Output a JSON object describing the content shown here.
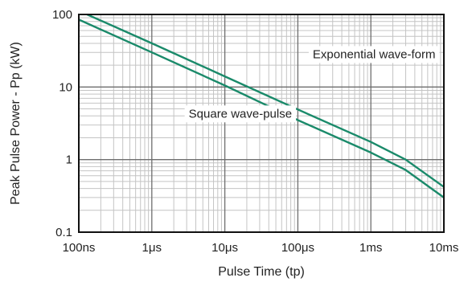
{
  "chart_data": {
    "type": "line",
    "xlabel": "Pulse Time (tp)",
    "ylabel": "Peak Pulse Power - Pp (kW)",
    "x_scale": "log",
    "y_scale": "log",
    "xlim_seconds": [
      1e-07,
      0.01
    ],
    "ylim_kW": [
      0.1,
      100
    ],
    "grid": true,
    "x_ticks": [
      {
        "value": 1e-07,
        "label": "100ns"
      },
      {
        "value": 1e-06,
        "label": "1μs"
      },
      {
        "value": 1e-05,
        "label": "10μs"
      },
      {
        "value": 0.0001,
        "label": "100μs"
      },
      {
        "value": 0.001,
        "label": "1ms"
      },
      {
        "value": 0.01,
        "label": "10ms"
      }
    ],
    "y_ticks": [
      {
        "value": 0.1,
        "label": "0.1"
      },
      {
        "value": 1,
        "label": "1"
      },
      {
        "value": 10,
        "label": "10"
      },
      {
        "value": 100,
        "label": "100"
      }
    ],
    "series": [
      {
        "name": "Exponential wave-form",
        "color": "#1a8a6a",
        "points": [
          [
            1.3e-07,
            100
          ],
          [
            1e-06,
            40
          ],
          [
            1e-05,
            14
          ],
          [
            0.0001,
            4.9
          ],
          [
            0.001,
            1.75
          ],
          [
            0.003,
            1.0
          ],
          [
            0.01,
            0.42
          ]
        ]
      },
      {
        "name": "Square wave-pulse",
        "color": "#1a8a6a",
        "points": [
          [
            1e-07,
            85
          ],
          [
            1e-06,
            30
          ],
          [
            1e-05,
            10.5
          ],
          [
            0.0001,
            3.5
          ],
          [
            0.001,
            1.25
          ],
          [
            0.003,
            0.72
          ],
          [
            0.01,
            0.3
          ]
        ]
      }
    ]
  }
}
